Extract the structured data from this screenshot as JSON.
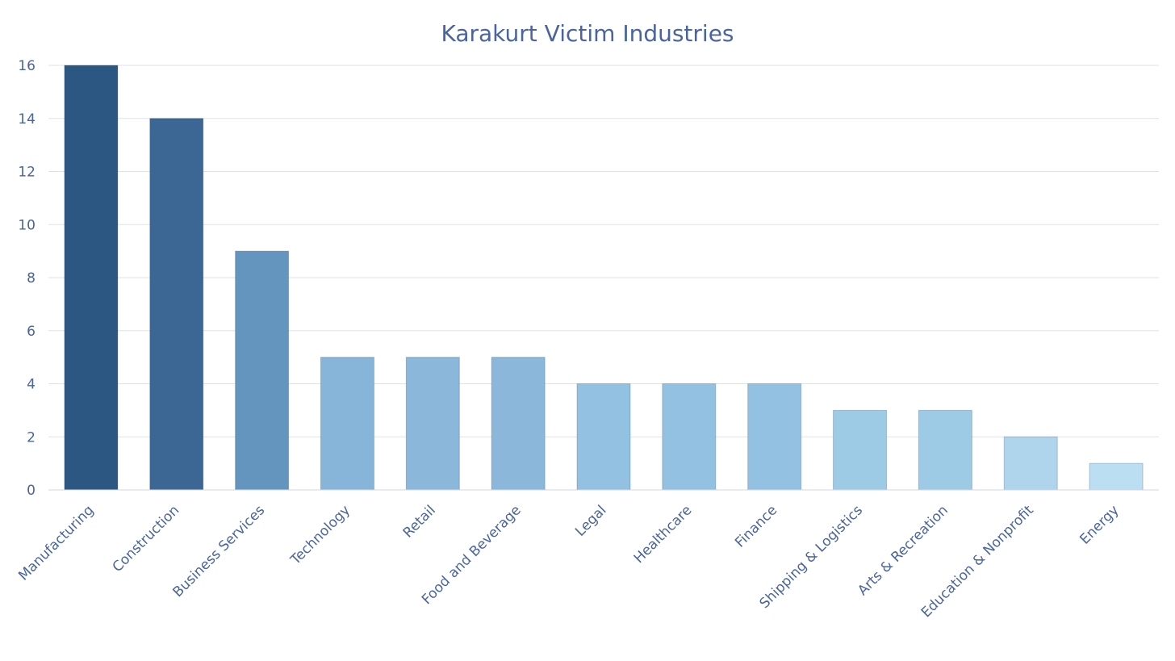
{
  "chart_data": {
    "type": "bar",
    "title": "Karakurt Victim Industries",
    "xlabel": "",
    "ylabel": "",
    "categories": [
      "Manufacturing",
      "Construction",
      "Business Services",
      "Technology",
      "Retail",
      "Food and Beverage",
      "Legal",
      "Healthcare",
      "Finance",
      "Shipping & Logistics",
      "Arts & Recreation",
      "Education & Nonprofit",
      "Energy"
    ],
    "values": [
      16,
      14,
      9,
      5,
      5,
      5,
      4,
      4,
      4,
      3,
      3,
      2,
      1
    ],
    "ylim": [
      0,
      16
    ],
    "yticks": [
      0,
      2,
      4,
      6,
      8,
      10,
      12,
      14,
      16
    ],
    "grid": true,
    "legend": "none",
    "bar_colors": [
      "#2b5782",
      "#3c6795",
      "#6495be",
      "#87b5d9",
      "#8ab7da",
      "#8ab7da",
      "#93c1e2",
      "#93c1e2",
      "#93c1e2",
      "#9dcbe6",
      "#9dcbe6",
      "#afd5ed",
      "#bbdef2"
    ],
    "text_color": "#4a64a0"
  }
}
